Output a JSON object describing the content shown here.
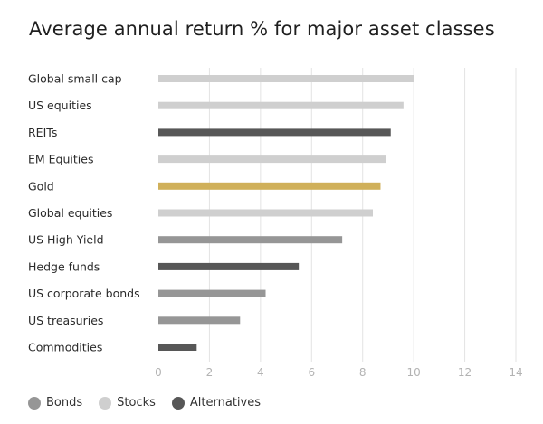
{
  "chart_data": {
    "type": "bar",
    "orientation": "horizontal",
    "title": "Average annual return % for major asset classes",
    "categories": [
      "Global small cap",
      "US equities",
      "REITs",
      "EM Equities",
      "Gold",
      "Global equities",
      "US High Yield",
      "Hedge funds",
      "US corporate bonds",
      "US treasuries",
      "Commodities"
    ],
    "values": [
      10.0,
      9.6,
      9.1,
      8.9,
      8.7,
      8.4,
      7.2,
      5.5,
      4.2,
      3.2,
      1.5
    ],
    "groups": [
      "Stocks",
      "Stocks",
      "Alternatives",
      "Stocks",
      "Gold",
      "Stocks",
      "Bonds",
      "Alternatives",
      "Bonds",
      "Bonds",
      "Alternatives"
    ],
    "xlim": [
      0,
      14
    ],
    "xticks": [
      0,
      2,
      4,
      6,
      8,
      10,
      12,
      14
    ],
    "grid": true,
    "legend": {
      "placement": "bottom-left",
      "entries": [
        {
          "name": "Bonds",
          "color": "#969696"
        },
        {
          "name": "Stocks",
          "color": "#cfcfcf"
        },
        {
          "name": "Alternatives",
          "color": "#575757"
        }
      ]
    },
    "colors": {
      "Bonds": "#969696",
      "Stocks": "#cfcfcf",
      "Alternatives": "#575757",
      "Gold": "#d0b05a"
    }
  }
}
